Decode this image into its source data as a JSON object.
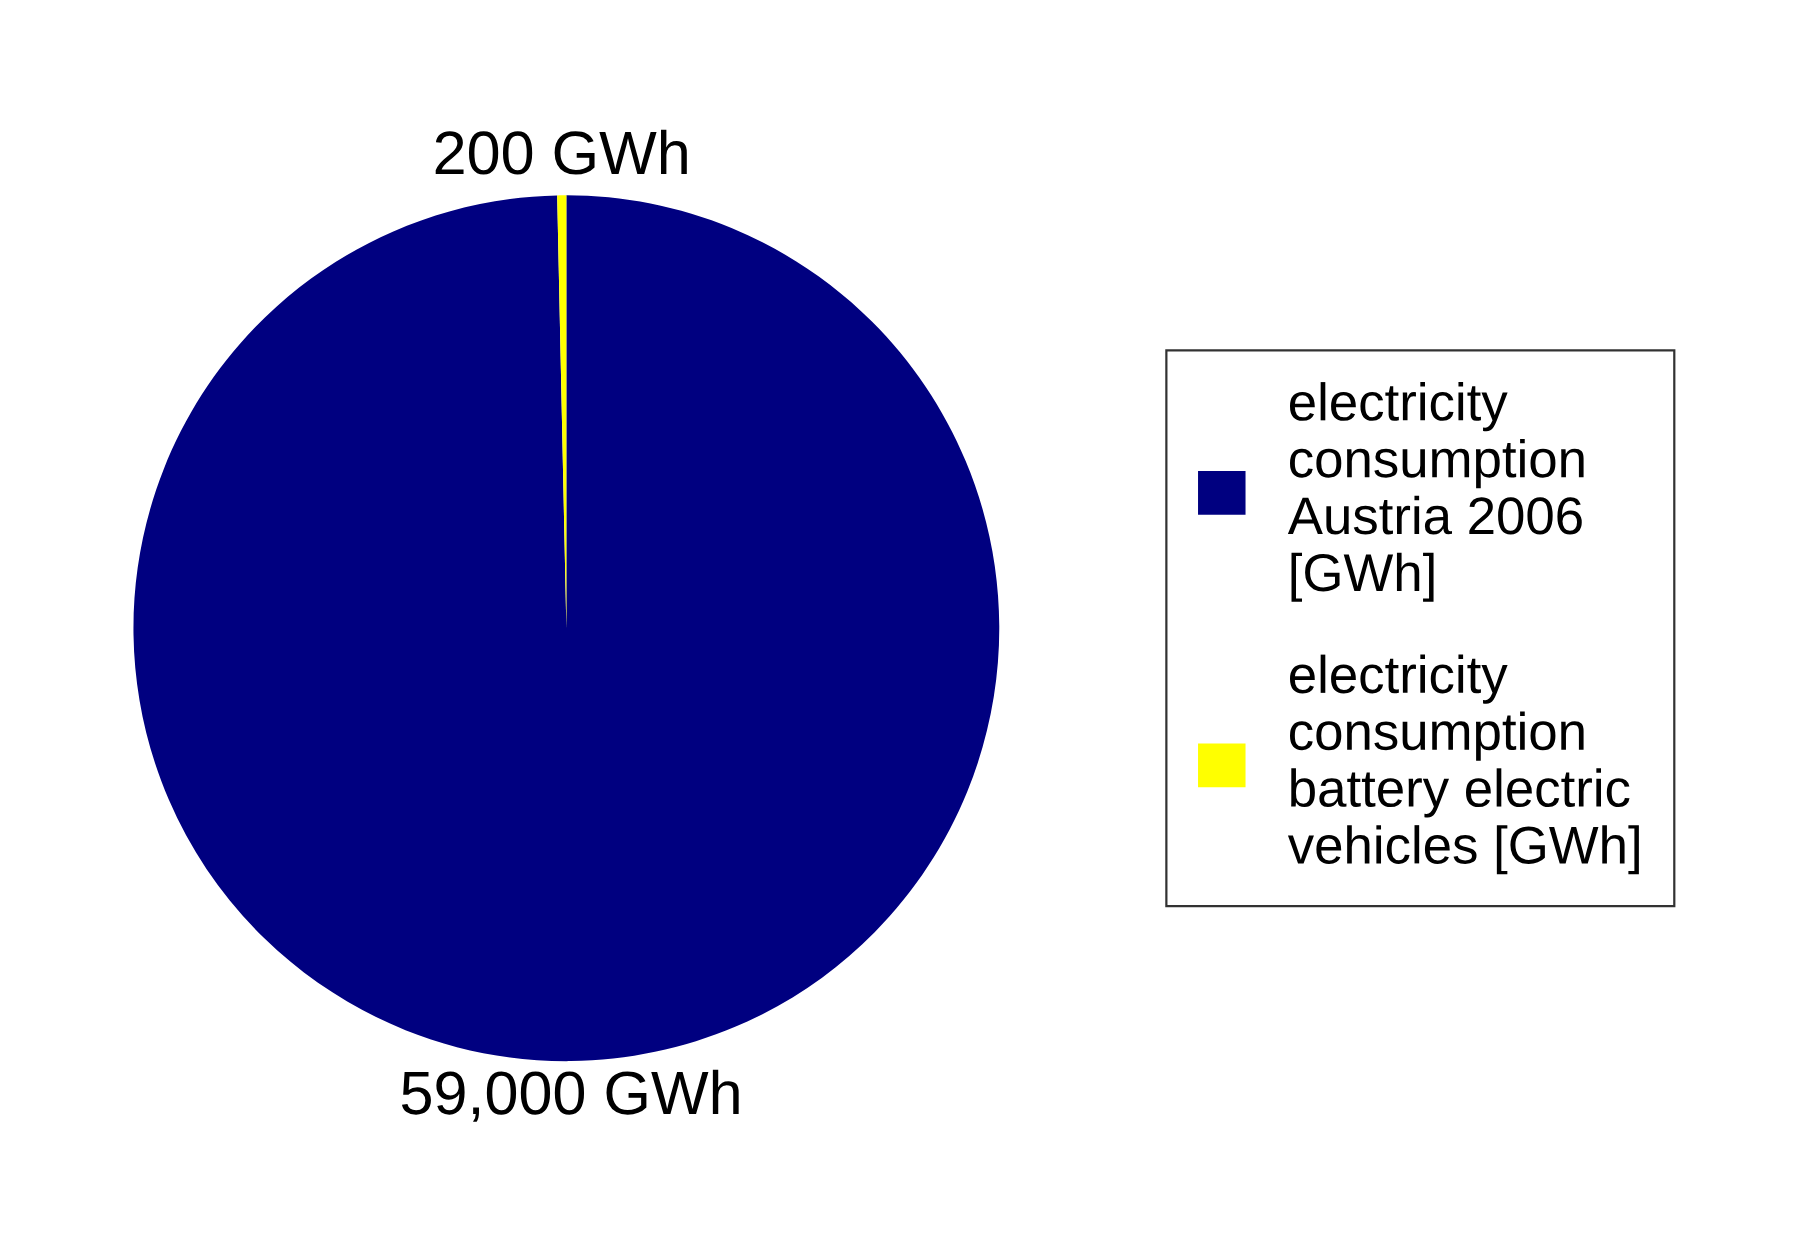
{
  "chart_data": {
    "type": "pie",
    "categories": [
      "electricity\nconsumption\nAustria 2006\n[GWh]",
      "electricity\nconsumption\nbattery electric\nvehicles [GWh]"
    ],
    "values": [
      59000,
      200
    ],
    "colors": [
      "#000080",
      "#ffff00"
    ],
    "value_labels": [
      "59,000 GWh",
      "200 GWh"
    ],
    "legend": "right"
  }
}
